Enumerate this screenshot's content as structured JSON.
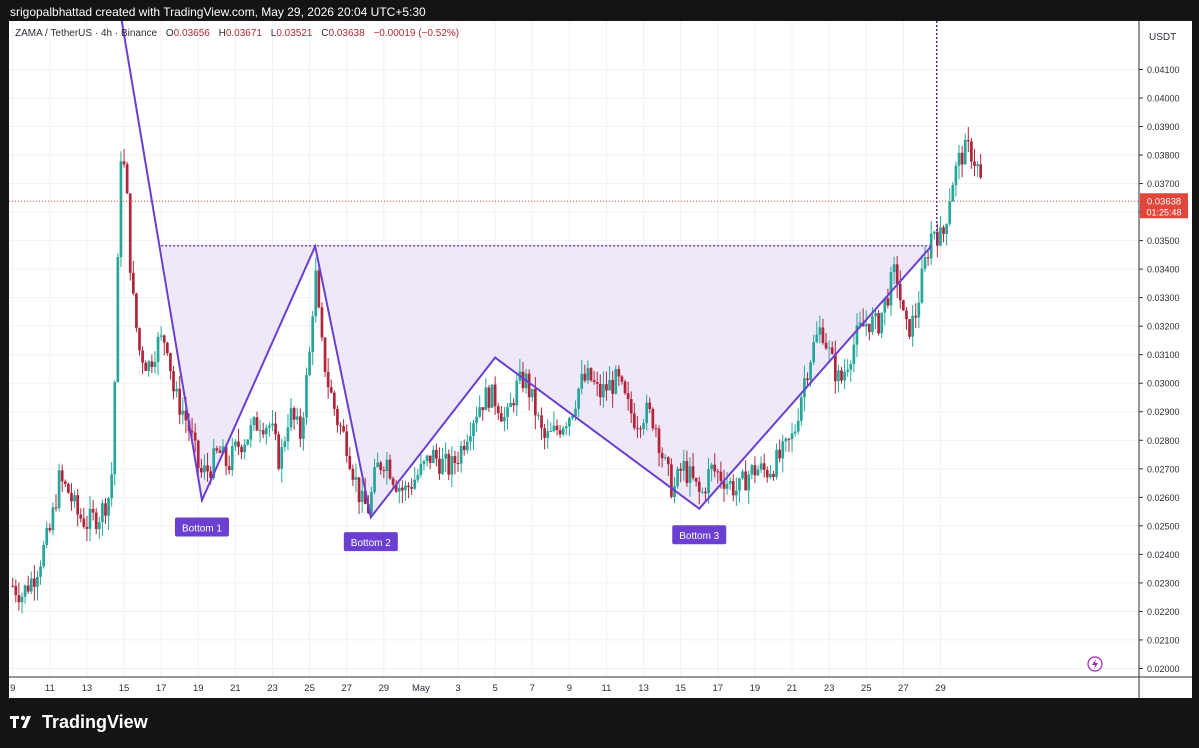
{
  "header": {
    "text": "srigopalbhattad created with TradingView.com, May 29, 2026 20:04 UTC+5:30"
  },
  "legend": {
    "symbol": "ZAMA / TetherUS · 4h · Binance",
    "o_label": "O",
    "o": "0.03656",
    "h_label": "H",
    "h": "0.03671",
    "l_label": "L",
    "l": "0.03521",
    "c_label": "C",
    "c": "0.03638",
    "change": "−0.00019 (−0.52%)"
  },
  "price_axis": {
    "currency": "USDT",
    "last_price": "0.03638",
    "countdown": "01:25:48"
  },
  "footer": {
    "brand": "TradingView"
  },
  "colors": {
    "up": "#26a69a",
    "down": "#b2243a",
    "pattern": "#6a3fd1",
    "fill": "#ebe4f8",
    "last_price": "#e0463a"
  },
  "chart_data": {
    "type": "candlestick",
    "interval": "4h",
    "y_range": [
      0.0197,
      0.0427
    ],
    "y_ticks": [
      0.02,
      0.021,
      0.022,
      0.023,
      0.024,
      0.025,
      0.026,
      0.027,
      0.028,
      0.029,
      0.03,
      0.031,
      0.032,
      0.033,
      0.034,
      0.035,
      0.036,
      0.037,
      0.038,
      0.039,
      0.04,
      0.041
    ],
    "y_tick_labels": [
      "0.02000",
      "0.02100",
      "0.02200",
      "0.02300",
      "0.02400",
      "0.02500",
      "0.02600",
      "0.02700",
      "0.02800",
      "0.02900",
      "0.03000",
      "0.03100",
      "0.03200",
      "0.03300",
      "0.03400",
      "0.03500",
      "0.03600",
      "0.03700",
      "0.03800",
      "0.03900",
      "0.04000",
      "0.04100"
    ],
    "x_range_days": [
      -0.2,
      60.7
    ],
    "x_ticks": [
      {
        "day": 0,
        "label": "9"
      },
      {
        "day": 2,
        "label": "11"
      },
      {
        "day": 4,
        "label": "13"
      },
      {
        "day": 6,
        "label": "15"
      },
      {
        "day": 8,
        "label": "17"
      },
      {
        "day": 10,
        "label": "19"
      },
      {
        "day": 12,
        "label": "21"
      },
      {
        "day": 14,
        "label": "23"
      },
      {
        "day": 16,
        "label": "25"
      },
      {
        "day": 18,
        "label": "27"
      },
      {
        "day": 20,
        "label": "29"
      },
      {
        "day": 22,
        "label": "May"
      },
      {
        "day": 24,
        "label": "3"
      },
      {
        "day": 26,
        "label": "5"
      },
      {
        "day": 28,
        "label": "7"
      },
      {
        "day": 30,
        "label": "9"
      },
      {
        "day": 32,
        "label": "11"
      },
      {
        "day": 34,
        "label": "13"
      },
      {
        "day": 36,
        "label": "15"
      },
      {
        "day": 38,
        "label": "17"
      },
      {
        "day": 40,
        "label": "19"
      },
      {
        "day": 42,
        "label": "21"
      },
      {
        "day": 44,
        "label": "23"
      },
      {
        "day": 46,
        "label": "25"
      },
      {
        "day": 48,
        "label": "27"
      },
      {
        "day": 50,
        "label": "29"
      }
    ],
    "close_path": [
      [
        0,
        0.0229
      ],
      [
        0.5,
        0.0226
      ],
      [
        1.2,
        0.0233
      ],
      [
        2,
        0.0248
      ],
      [
        2.5,
        0.0266
      ],
      [
        3,
        0.0262
      ],
      [
        3.5,
        0.0254
      ],
      [
        4,
        0.0251
      ],
      [
        4.7,
        0.0254
      ],
      [
        5.3,
        0.0262
      ],
      [
        5.6,
        0.032
      ],
      [
        5.8,
        0.0382
      ],
      [
        6.1,
        0.0372
      ],
      [
        6.4,
        0.0334
      ],
      [
        6.8,
        0.0312
      ],
      [
        7.3,
        0.0306
      ],
      [
        7.8,
        0.0314
      ],
      [
        8.3,
        0.0316
      ],
      [
        8.7,
        0.0296
      ],
      [
        9.2,
        0.029
      ],
      [
        9.6,
        0.0282
      ],
      [
        10.1,
        0.0268
      ],
      [
        10.6,
        0.027
      ],
      [
        11.1,
        0.0276
      ],
      [
        11.6,
        0.0271
      ],
      [
        12.1,
        0.0278
      ],
      [
        12.7,
        0.0282
      ],
      [
        13.3,
        0.0287
      ],
      [
        13.9,
        0.0285
      ],
      [
        14.4,
        0.0272
      ],
      [
        14.9,
        0.029
      ],
      [
        15.5,
        0.0282
      ],
      [
        16,
        0.031
      ],
      [
        16.3,
        0.034
      ],
      [
        16.6,
        0.0315
      ],
      [
        17,
        0.03
      ],
      [
        17.5,
        0.0287
      ],
      [
        18,
        0.0279
      ],
      [
        18.4,
        0.0268
      ],
      [
        18.8,
        0.0258
      ],
      [
        19.2,
        0.0256
      ],
      [
        19.6,
        0.027
      ],
      [
        20.1,
        0.0274
      ],
      [
        20.6,
        0.0266
      ],
      [
        21.1,
        0.0262
      ],
      [
        21.6,
        0.0266
      ],
      [
        22.1,
        0.027
      ],
      [
        22.6,
        0.0275
      ],
      [
        23.1,
        0.0272
      ],
      [
        23.6,
        0.027
      ],
      [
        24.1,
        0.0276
      ],
      [
        24.6,
        0.0285
      ],
      [
        25.1,
        0.0292
      ],
      [
        25.6,
        0.0296
      ],
      [
        26.1,
        0.0294
      ],
      [
        26.6,
        0.0286
      ],
      [
        27.1,
        0.0298
      ],
      [
        27.6,
        0.0302
      ],
      [
        28.1,
        0.0292
      ],
      [
        28.6,
        0.028
      ],
      [
        29.1,
        0.0282
      ],
      [
        29.6,
        0.0286
      ],
      [
        30.1,
        0.029
      ],
      [
        30.6,
        0.03
      ],
      [
        31.1,
        0.0302
      ],
      [
        31.6,
        0.0296
      ],
      [
        32.1,
        0.0299
      ],
      [
        32.6,
        0.0301
      ],
      [
        33.1,
        0.0292
      ],
      [
        33.6,
        0.0287
      ],
      [
        34.1,
        0.029
      ],
      [
        34.6,
        0.0287
      ],
      [
        35.1,
        0.0272
      ],
      [
        35.6,
        0.0262
      ],
      [
        36.1,
        0.0271
      ],
      [
        36.6,
        0.0266
      ],
      [
        37.1,
        0.026
      ],
      [
        37.6,
        0.027
      ],
      [
        38.1,
        0.0268
      ],
      [
        38.6,
        0.0265
      ],
      [
        39.1,
        0.0262
      ],
      [
        39.6,
        0.0268
      ],
      [
        40.1,
        0.027
      ],
      [
        40.6,
        0.0269
      ],
      [
        41.1,
        0.0272
      ],
      [
        41.6,
        0.0276
      ],
      [
        42.1,
        0.0282
      ],
      [
        42.6,
        0.03
      ],
      [
        43.1,
        0.0312
      ],
      [
        43.6,
        0.032
      ],
      [
        44.1,
        0.0308
      ],
      [
        44.6,
        0.03
      ],
      [
        45.1,
        0.031
      ],
      [
        45.6,
        0.0318
      ],
      [
        46.1,
        0.0322
      ],
      [
        46.6,
        0.032
      ],
      [
        47.1,
        0.033
      ],
      [
        47.6,
        0.034
      ],
      [
        48.1,
        0.0318
      ],
      [
        48.6,
        0.0322
      ],
      [
        49.1,
        0.034
      ],
      [
        49.6,
        0.0355
      ],
      [
        50.1,
        0.035
      ],
      [
        50.6,
        0.037
      ],
      [
        51.1,
        0.038
      ],
      [
        51.6,
        0.0382
      ],
      [
        52.1,
        0.0374
      ],
      [
        52.3,
        0.0364
      ]
    ],
    "candle_width_days": 0.145,
    "last_price": 0.03638,
    "last_price_day": 52.4,
    "vertical_marker_day": 49.8,
    "pattern": {
      "region_top_price": 0.03482,
      "region_top_start_day": 8.0,
      "region_top_end_day": 49.5,
      "zigzag": [
        {
          "day": 5.8,
          "price": 0.043
        },
        {
          "day": 10.2,
          "price": 0.0259
        },
        {
          "day": 16.3,
          "price": 0.0348
        },
        {
          "day": 19.3,
          "price": 0.0253
        },
        {
          "day": 26.0,
          "price": 0.0309
        },
        {
          "day": 37.0,
          "price": 0.0256
        },
        {
          "day": 49.5,
          "price": 0.0348
        }
      ],
      "labels": [
        {
          "text": "Bottom 1",
          "day": 10.2,
          "price": 0.02494
        },
        {
          "text": "Bottom 2",
          "day": 19.3,
          "price": 0.02443
        },
        {
          "text": "Bottom 3",
          "day": 37.0,
          "price": 0.02467
        }
      ]
    }
  }
}
